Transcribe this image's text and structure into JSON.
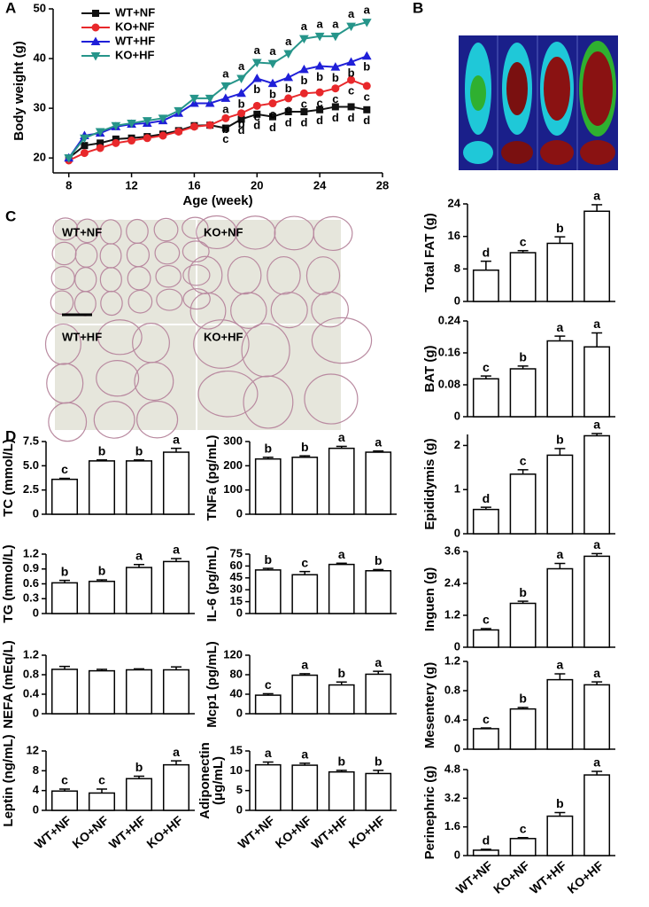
{
  "panel_labels": [
    "A",
    "B",
    "C",
    "D"
  ],
  "micrographs": {
    "labels": [
      "WT+NF",
      "KO+NF",
      "WT+HF",
      "KO+HF"
    ]
  },
  "chart_data": [
    {
      "type": "line",
      "ylabel": "Body weight (g)",
      "xlabel": "Age (week)",
      "x": [
        8,
        9,
        10,
        11,
        12,
        13,
        14,
        15,
        16,
        17,
        18,
        19,
        20,
        21,
        22,
        23,
        24,
        25,
        26,
        27
      ],
      "xlim": [
        7,
        28
      ],
      "xticks": [
        8,
        12,
        16,
        20,
        24,
        28
      ],
      "ylim": [
        17,
        50
      ],
      "yticks": [
        20,
        30,
        40,
        50
      ],
      "series": [
        {
          "name": "WT+NF",
          "color": "#111111",
          "marker": "square",
          "values": [
            20,
            22.5,
            23,
            23.8,
            24,
            24.3,
            24.8,
            25.5,
            26.5,
            26.6,
            26,
            27.8,
            28.8,
            28.3,
            29.3,
            29.3,
            29.7,
            30.3,
            30.3,
            29.7
          ],
          "letters": [
            null,
            null,
            null,
            null,
            null,
            null,
            null,
            null,
            null,
            null,
            "c",
            "d",
            "d",
            "d",
            "d",
            "d",
            "d",
            "d",
            "d",
            "d"
          ]
        },
        {
          "name": "KO+NF",
          "color": "#e8282b",
          "marker": "circle",
          "values": [
            19.5,
            21,
            22,
            23,
            23.5,
            24,
            24.5,
            25.3,
            26.3,
            26.6,
            28,
            29,
            30.5,
            31,
            32,
            33,
            33.2,
            34,
            35.7,
            34.5
          ],
          "letters": [
            null,
            null,
            null,
            null,
            null,
            null,
            null,
            null,
            null,
            null,
            "b",
            "b",
            "c",
            "c",
            "c",
            "c",
            "c",
            "c",
            "c",
            "c"
          ]
        },
        {
          "name": "WT+HF",
          "color": "#1f1fd8",
          "marker": "triangle",
          "values": [
            20,
            24.5,
            25,
            26.3,
            26.8,
            27,
            27.5,
            29,
            31,
            31,
            32,
            33,
            36,
            35,
            36.2,
            37.8,
            38.5,
            38.3,
            39.3,
            40.5
          ],
          "letters": [
            null,
            null,
            null,
            null,
            null,
            null,
            null,
            null,
            null,
            null,
            "a",
            "b",
            "b",
            "b",
            "b",
            "b",
            "b",
            "b",
            "b",
            "b"
          ]
        },
        {
          "name": "KO+HF",
          "color": "#26958a",
          "marker": "triangle-down",
          "values": [
            20,
            24,
            25.3,
            26.5,
            27,
            27.5,
            28,
            29.5,
            32,
            32,
            34.5,
            36,
            39.2,
            39,
            41,
            44,
            44.5,
            44.5,
            46.5,
            47.3
          ],
          "letters": [
            null,
            null,
            null,
            null,
            null,
            null,
            null,
            null,
            null,
            null,
            "a",
            "a",
            "a",
            "a",
            "a",
            "a",
            "a",
            "a",
            "a",
            "a"
          ]
        }
      ]
    },
    {
      "type": "bar",
      "ylabel": "TC (mmol/L)",
      "ylim": [
        0,
        7.5
      ],
      "yticks": [
        0,
        2.5,
        {
          "value": 5,
          "label": "5.0"
        },
        7.5
      ],
      "values": [
        3.6,
        5.5,
        5.5,
        6.4
      ],
      "errors": [
        0.1,
        0.1,
        0.1,
        0.4
      ],
      "letters": [
        "c",
        "b",
        "b",
        "a"
      ]
    },
    {
      "type": "bar",
      "ylabel": "TNFa (pg/mL)",
      "ylim": [
        0,
        300
      ],
      "yticks": [
        0,
        100,
        200,
        300
      ],
      "values": [
        228,
        235,
        272,
        256
      ],
      "errors": [
        7,
        6,
        8,
        5
      ],
      "letters": [
        "b",
        "b",
        "a",
        "a"
      ]
    },
    {
      "type": "bar",
      "ylabel": "TG (mmol/L)",
      "ylim": [
        0,
        1.2
      ],
      "yticks": [
        0,
        0.3,
        0.6,
        0.9,
        1.2
      ],
      "values": [
        0.62,
        0.65,
        0.93,
        1.05
      ],
      "errors": [
        0.05,
        0.03,
        0.06,
        0.06
      ],
      "letters": [
        "b",
        "b",
        "a",
        "a"
      ]
    },
    {
      "type": "bar",
      "ylabel": "IL-6 (pg/mL)",
      "ylim": [
        0,
        75
      ],
      "yticks": [
        0,
        15,
        30,
        45,
        60,
        75
      ],
      "values": [
        55,
        49,
        62,
        54
      ],
      "errors": [
        2,
        4,
        1.5,
        1.5
      ],
      "letters": [
        "b",
        "c",
        "a",
        "b"
      ]
    },
    {
      "type": "bar",
      "ylabel": "NEFA (mEq/L)",
      "ylim": [
        0,
        1.2
      ],
      "yticks": [
        0,
        0.4,
        0.8,
        1.2
      ],
      "values": [
        0.91,
        0.88,
        0.9,
        0.9
      ],
      "errors": [
        0.06,
        0.03,
        0.02,
        0.06
      ]
    },
    {
      "type": "bar",
      "ylabel": "Mcp1 (pg/mL)",
      "ylim": [
        0,
        120
      ],
      "yticks": [
        0,
        40,
        80,
        120
      ],
      "values": [
        38,
        79,
        59,
        81
      ],
      "errors": [
        3,
        3,
        6,
        6
      ],
      "letters": [
        "c",
        "a",
        "b",
        "a"
      ]
    },
    {
      "type": "bar",
      "ylabel": "Leptin (ng/mL)",
      "ylim": [
        0,
        12
      ],
      "yticks": [
        0,
        4,
        8,
        12
      ],
      "categories": [
        "WT+NF",
        "KO+NF",
        "WT+HF",
        "KO+HF"
      ],
      "values": [
        3.9,
        3.5,
        6.4,
        9.2
      ],
      "errors": [
        0.4,
        0.8,
        0.5,
        0.8
      ],
      "letters": [
        "c",
        "c",
        "b",
        "a"
      ]
    },
    {
      "type": "bar",
      "ylabel": [
        "Adiponectin",
        "(μg/mL)"
      ],
      "ylim": [
        0,
        15
      ],
      "yticks": [
        0,
        5,
        10,
        15
      ],
      "categories": [
        "WT+NF",
        "KO+NF",
        "WT+HF",
        "KO+HF"
      ],
      "values": [
        11.5,
        11.4,
        9.7,
        9.3
      ],
      "errors": [
        0.7,
        0.5,
        0.4,
        0.8
      ],
      "letters": [
        "a",
        "a",
        "b",
        "b"
      ]
    },
    {
      "type": "bar",
      "ylabel": "Total FAT (g)",
      "ylim": [
        0,
        24
      ],
      "yticks": [
        0,
        8,
        16,
        24
      ],
      "values": [
        7.7,
        12,
        14.3,
        22.2
      ],
      "errors": [
        2.2,
        0.5,
        1.6,
        1.6
      ],
      "letters": [
        "d",
        "c",
        "b",
        "a"
      ]
    },
    {
      "type": "bar",
      "ylabel": "BAT (g)",
      "ylim": [
        0,
        0.24
      ],
      "yticks": [
        0,
        0.08,
        0.16,
        0.24
      ],
      "values": [
        0.095,
        0.12,
        0.19,
        0.175
      ],
      "errors": [
        0.007,
        0.007,
        0.012,
        0.035
      ],
      "letters": [
        "c",
        "b",
        "a",
        "a"
      ]
    },
    {
      "type": "bar",
      "ylabel": "Epididymis (g)",
      "ylim": [
        0,
        2.25
      ],
      "yticks": [
        0,
        1,
        2
      ],
      "values": [
        0.55,
        1.35,
        1.78,
        2.22
      ],
      "errors": [
        0.05,
        0.1,
        0.15,
        0.05
      ],
      "letters": [
        "d",
        "c",
        "b",
        "a"
      ]
    },
    {
      "type": "bar",
      "ylabel": "Inguen (g)",
      "ylim": [
        0,
        3.6
      ],
      "yticks": [
        0,
        1.2,
        2.4,
        3.6
      ],
      "values": [
        0.65,
        1.65,
        2.95,
        3.42
      ],
      "errors": [
        0.05,
        0.08,
        0.2,
        0.1
      ],
      "letters": [
        "c",
        "b",
        "a",
        "a"
      ]
    },
    {
      "type": "bar",
      "ylabel": "Mesentery (g)",
      "ylim": [
        0,
        1.2
      ],
      "yticks": [
        0,
        0.4,
        0.8,
        1.2
      ],
      "values": [
        0.28,
        0.55,
        0.95,
        0.88
      ],
      "errors": [
        0.01,
        0.02,
        0.08,
        0.04
      ],
      "letters": [
        "c",
        "b",
        "a",
        "a"
      ]
    },
    {
      "type": "bar",
      "ylabel": "Perinephric (g)",
      "ylim": [
        0,
        4.8
      ],
      "yticks": [
        0,
        1.6,
        3.2,
        4.8
      ],
      "categories": [
        "WT+NF",
        "KO+NF",
        "WT+HF",
        "KO+HF"
      ],
      "values": [
        0.3,
        0.95,
        2.2,
        4.5
      ],
      "errors": [
        0.05,
        0.05,
        0.2,
        0.2
      ],
      "letters": [
        "d",
        "c",
        "b",
        "a"
      ]
    }
  ]
}
